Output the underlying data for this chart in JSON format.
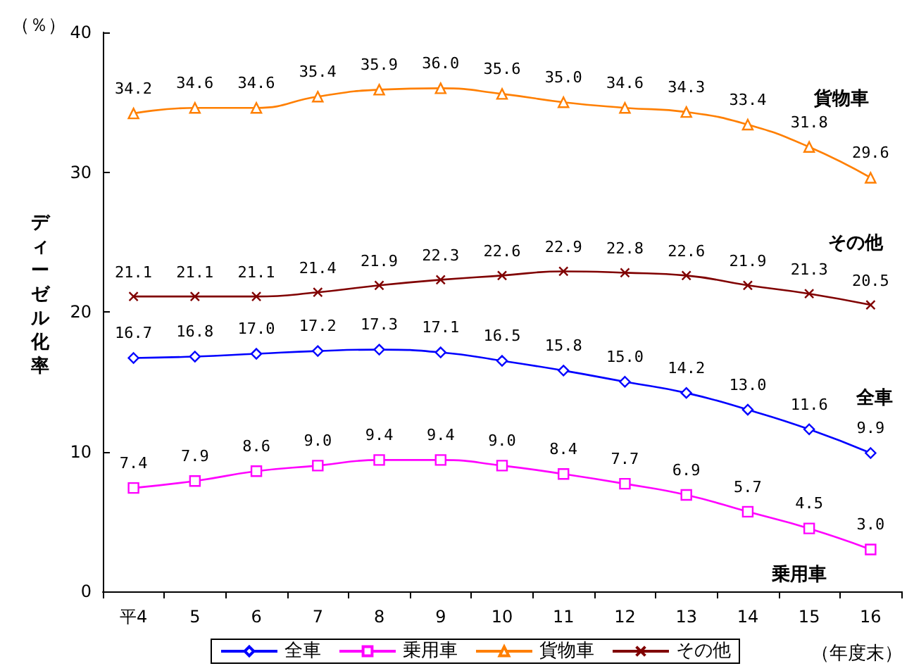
{
  "chart_data": {
    "type": "line",
    "xlabel": "（年度末）",
    "ylabel": "ディーゼル化率",
    "annotations": [
      "（％）"
    ],
    "categories": [
      "平4",
      "5",
      "6",
      "7",
      "8",
      "9",
      "10",
      "11",
      "12",
      "13",
      "14",
      "15",
      "16"
    ],
    "series": [
      {
        "name": "全車",
        "color": "#0000ff",
        "marker": "diamond",
        "values": [
          16.7,
          16.8,
          17.0,
          17.2,
          17.3,
          17.1,
          16.5,
          15.8,
          15.0,
          14.2,
          13.0,
          11.6,
          9.9
        ],
        "value_labels": [
          "16.7",
          "16.8",
          "17.0",
          "17.2",
          "17.3",
          "17.1",
          "16.5",
          "15.8",
          "15.0",
          "14.2",
          "13.0",
          "11.6",
          "9.9"
        ]
      },
      {
        "name": "乗用車",
        "color": "#ff00ff",
        "marker": "square",
        "values": [
          7.4,
          7.9,
          8.6,
          9.0,
          9.4,
          9.4,
          9.0,
          8.4,
          7.7,
          6.9,
          5.7,
          4.5,
          3.0
        ],
        "value_labels": [
          "7.4",
          "7.9",
          "8.6",
          "9.0",
          "9.4",
          "9.4",
          "9.0",
          "8.4",
          "7.7",
          "6.9",
          "5.7",
          "4.5",
          "3.0"
        ]
      },
      {
        "name": "貨物車",
        "color": "#ff7f00",
        "marker": "triangle",
        "values": [
          34.2,
          34.6,
          34.6,
          35.4,
          35.9,
          36.0,
          35.6,
          35.0,
          34.6,
          34.3,
          33.4,
          31.8,
          29.6
        ],
        "value_labels": [
          "34.2",
          "34.6",
          "34.6",
          "35.4",
          "35.9",
          "36.0",
          "35.6",
          "35.0",
          "34.6",
          "34.3",
          "33.4",
          "31.8",
          "29.6"
        ]
      },
      {
        "name": "その他",
        "color": "#800000",
        "marker": "cross",
        "values": [
          21.1,
          21.1,
          21.1,
          21.4,
          21.9,
          22.3,
          22.6,
          22.9,
          22.8,
          22.6,
          21.9,
          21.3,
          20.5
        ],
        "value_labels": [
          "21.1",
          "21.1",
          "21.1",
          "21.4",
          "21.9",
          "22.3",
          "22.6",
          "22.9",
          "22.8",
          "22.6",
          "21.9",
          "21.3",
          "20.5"
        ]
      }
    ],
    "ylim": [
      0,
      40
    ],
    "yticks": [
      0,
      10,
      20,
      30,
      40
    ],
    "grid": false,
    "legend": "bottom"
  }
}
